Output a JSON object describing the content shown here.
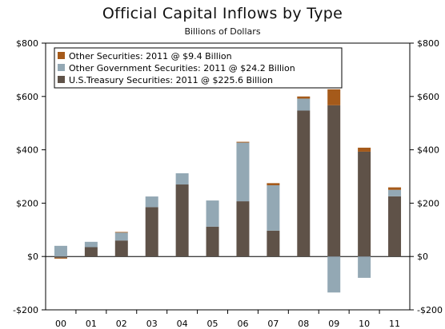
{
  "chart_data": {
    "type": "bar",
    "stacked": true,
    "title": "Official Capital Inflows by Type",
    "subtitle": "Billions of Dollars",
    "categories": [
      "00",
      "01",
      "02",
      "03",
      "04",
      "05",
      "06",
      "07",
      "08",
      "09",
      "10",
      "11"
    ],
    "ylim": [
      -200,
      800
    ],
    "yticks": [
      -200,
      0,
      200,
      400,
      600,
      800
    ],
    "ytick_labels": [
      "-$200",
      "$0",
      "$200",
      "$400",
      "$600",
      "$800"
    ],
    "grid": false,
    "legend_position": "top-left",
    "series": [
      {
        "name": "U.S.Treasury Securities: 2011 @ $225.6 Billion",
        "color": "#5f5248",
        "values": [
          -5,
          35,
          60,
          185,
          270,
          112,
          207,
          97,
          547,
          567,
          393,
          225.6
        ]
      },
      {
        "name": "Other Government Securities: 2011 @ $24.2 Billion",
        "color": "#93a8b4",
        "values": [
          40,
          20,
          30,
          40,
          42,
          98,
          220,
          170,
          45,
          -135,
          -80,
          24.2
        ]
      },
      {
        "name": "Other Securities: 2011 @ $9.4 Billion",
        "color": "#a55a1a",
        "values": [
          -3,
          0,
          2,
          0,
          0,
          0,
          3,
          8,
          8,
          60,
          15,
          9.4
        ]
      }
    ],
    "legend_order": [
      2,
      1,
      0
    ]
  }
}
